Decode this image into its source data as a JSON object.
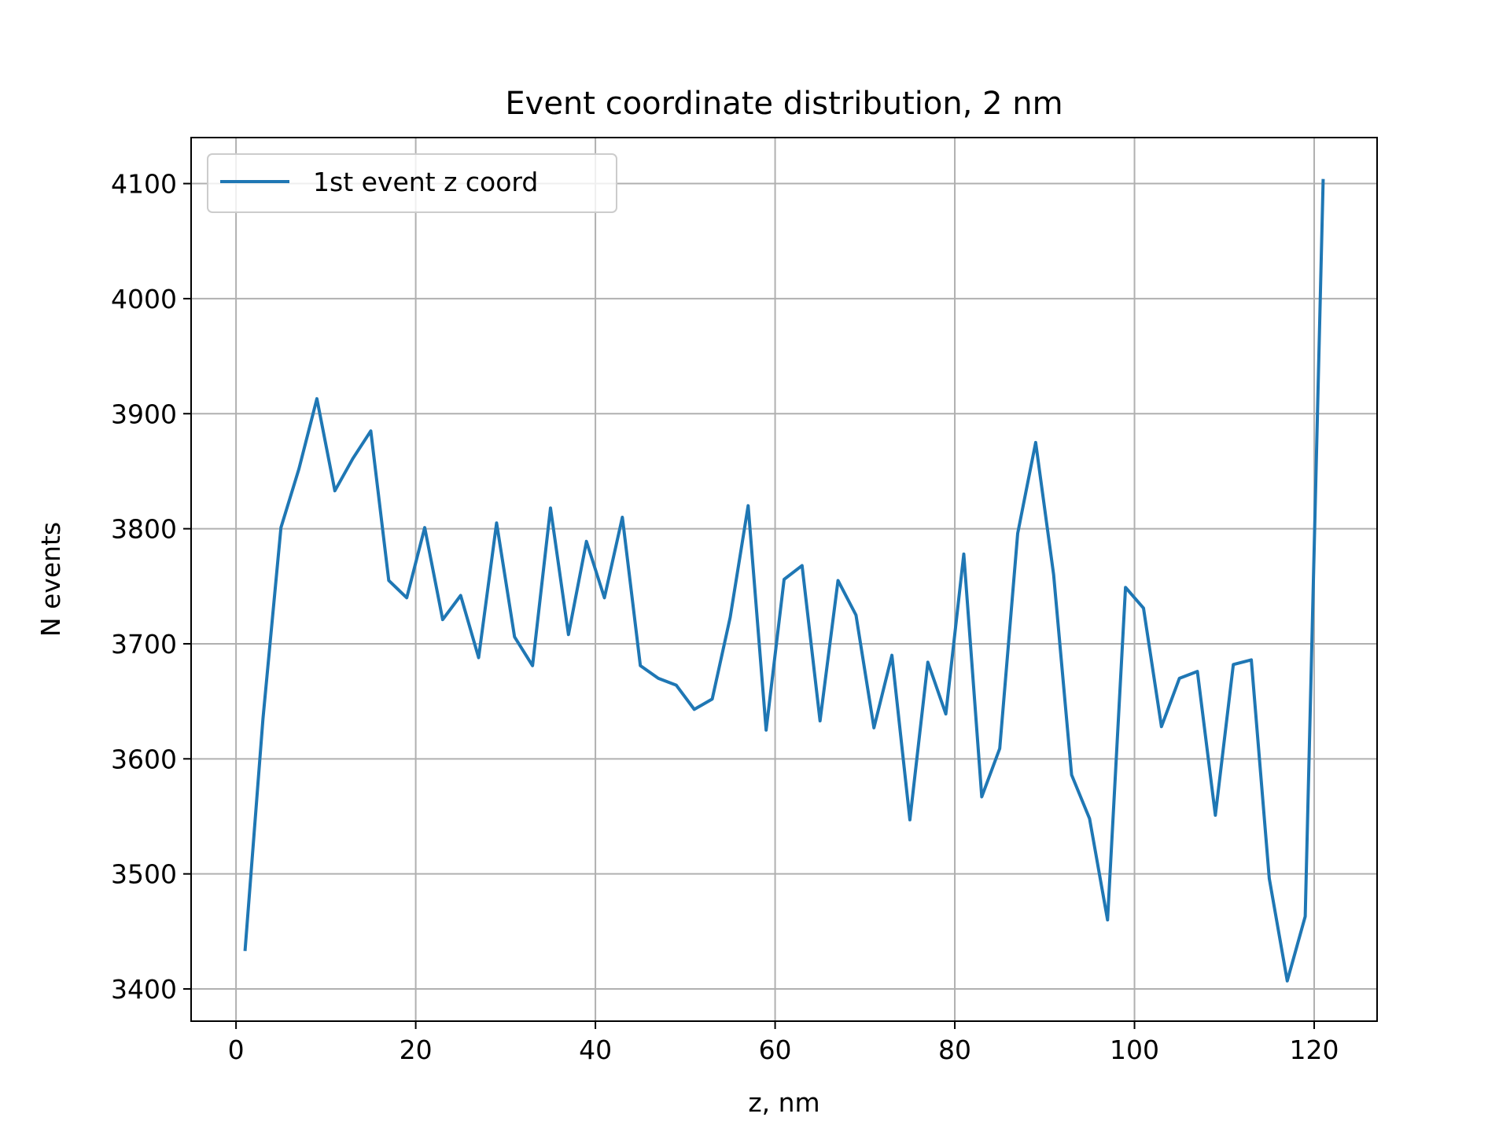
{
  "chart_data": {
    "type": "line",
    "title": "Event coordinate distribution, 2 nm",
    "xlabel": "z, nm",
    "ylabel": "N events",
    "xlim": [
      -5,
      127
    ],
    "ylim": [
      3372,
      4140
    ],
    "xticks": [
      0,
      20,
      40,
      60,
      80,
      100,
      120
    ],
    "yticks": [
      3400,
      3500,
      3600,
      3700,
      3800,
      3900,
      4000,
      4100
    ],
    "grid": true,
    "legend_position": "upper-left",
    "series": [
      {
        "name": "1st event z coord",
        "color": "#1f77b4",
        "x": [
          1,
          3,
          5,
          7,
          9,
          11,
          13,
          15,
          17,
          19,
          21,
          23,
          25,
          27,
          29,
          31,
          33,
          35,
          37,
          39,
          41,
          43,
          45,
          47,
          49,
          51,
          53,
          55,
          57,
          59,
          61,
          63,
          65,
          67,
          69,
          71,
          73,
          75,
          77,
          79,
          81,
          83,
          85,
          87,
          89,
          91,
          93,
          95,
          97,
          99,
          101,
          103,
          105,
          107,
          109,
          111,
          113,
          115,
          117,
          119,
          121
        ],
        "y": [
          3433,
          3635,
          3801,
          3852,
          3913,
          3833,
          3861,
          3885,
          3755,
          3740,
          3801,
          3721,
          3742,
          3688,
          3805,
          3706,
          3681,
          3818,
          3708,
          3789,
          3740,
          3810,
          3681,
          3670,
          3664,
          3643,
          3652,
          3723,
          3820,
          3625,
          3756,
          3768,
          3633,
          3755,
          3725,
          3627,
          3690,
          3547,
          3684,
          3639,
          3778,
          3567,
          3609,
          3796,
          3875,
          3760,
          3586,
          3548,
          3460,
          3749,
          3731,
          3628,
          3670,
          3676,
          3551,
          3682,
          3686,
          3496,
          3407,
          3463,
          4104
        ]
      }
    ]
  }
}
